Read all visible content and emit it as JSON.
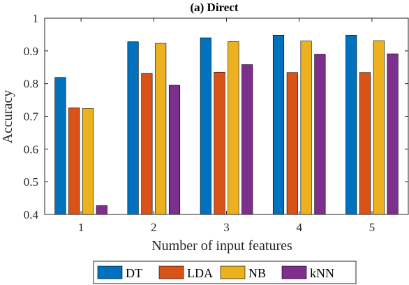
{
  "chart_data": {
    "type": "bar",
    "title": "(a) Direct",
    "xlabel": "Number of input features",
    "ylabel": "Accuracy",
    "categories": [
      "1",
      "2",
      "3",
      "4",
      "5"
    ],
    "ylim": [
      0.4,
      1.0
    ],
    "yticks": [
      "0.4",
      "0.5",
      "0.6",
      "0.7",
      "0.8",
      "0.9",
      "1"
    ],
    "grid": false,
    "legend_position": "bottom-outside",
    "series": [
      {
        "name": "DT",
        "color": "#0072BD",
        "values": [
          0.819,
          0.928,
          0.94,
          0.948,
          0.948
        ]
      },
      {
        "name": "LDA",
        "color": "#D95319",
        "values": [
          0.726,
          0.831,
          0.835,
          0.834,
          0.834
        ]
      },
      {
        "name": "NB",
        "color": "#EDB120",
        "values": [
          0.724,
          0.923,
          0.928,
          0.93,
          0.931
        ]
      },
      {
        "name": "kNN",
        "color": "#7E2F8E",
        "values": [
          0.427,
          0.795,
          0.858,
          0.89,
          0.891
        ]
      }
    ]
  }
}
